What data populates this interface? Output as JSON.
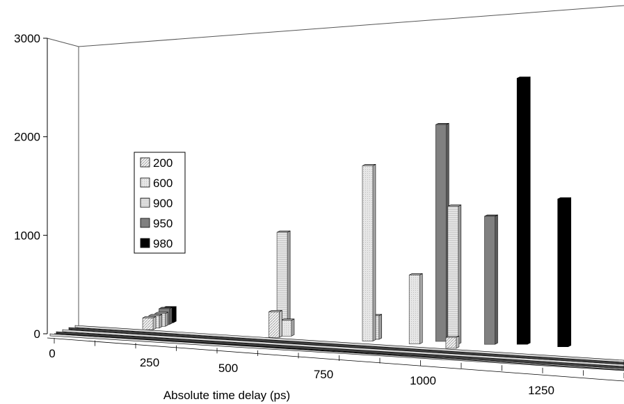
{
  "chart_data": {
    "type": "bar",
    "title": "",
    "xlabel": "Absolute time delay (ps)",
    "ylabel": "",
    "ylim": [
      0,
      3000
    ],
    "xlim": [
      0,
      1400
    ],
    "yticks": [
      "0",
      "1000",
      "2000",
      "3000"
    ],
    "xticks": [
      "0",
      "250",
      "500",
      "750",
      "1000",
      "1250"
    ],
    "legend_position": "left",
    "series": [
      {
        "name": "200",
        "pattern": "hatch-light",
        "color": "#e8e8e8",
        "points": [
          {
            "x": 230,
            "y": 120
          },
          {
            "x": 540,
            "y": 260
          },
          {
            "x": 975,
            "y": 110
          }
        ]
      },
      {
        "name": "600",
        "pattern": "solid-light",
        "color": "#e0e0e0",
        "points": [
          {
            "x": 245,
            "y": 125
          },
          {
            "x": 570,
            "y": 160
          },
          {
            "x": 770,
            "y": 1780
          },
          {
            "x": 885,
            "y": 700
          }
        ]
      },
      {
        "name": "900",
        "pattern": "hatch-horizontal",
        "color": "#dcdcdc",
        "points": [
          {
            "x": 260,
            "y": 130
          },
          {
            "x": 560,
            "y": 1030
          },
          {
            "x": 785,
            "y": 240
          },
          {
            "x": 980,
            "y": 1400
          }
        ]
      },
      {
        "name": "950",
        "pattern": "solid-gray",
        "color": "#808080",
        "points": [
          {
            "x": 270,
            "y": 160
          },
          {
            "x": 950,
            "y": 2200
          },
          {
            "x": 1070,
            "y": 1300
          }
        ]
      },
      {
        "name": "980",
        "pattern": "solid-black",
        "color": "#000000",
        "points": [
          {
            "x": 280,
            "y": 150
          },
          {
            "x": 1150,
            "y": 2700
          },
          {
            "x": 1250,
            "y": 1500
          }
        ]
      }
    ]
  }
}
